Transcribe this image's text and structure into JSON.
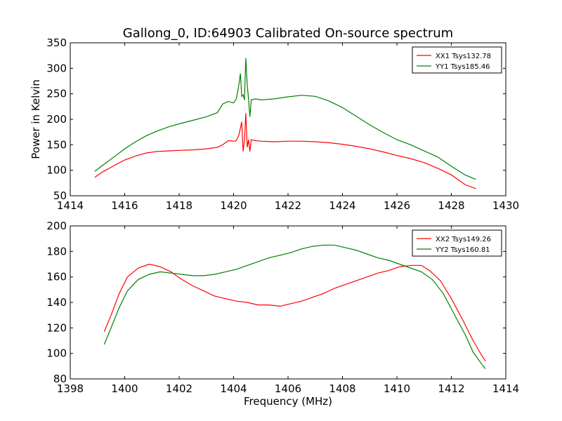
{
  "title": "Gallong_0, ID:64903 Calibrated On-source spectrum",
  "chart_data": [
    {
      "type": "line",
      "title": "Gallong_0, ID:64903 Calibrated On-source spectrum",
      "xlabel": "",
      "ylabel": "Power in Kelvin",
      "xlim": [
        1414,
        1430
      ],
      "ylim": [
        50,
        350
      ],
      "xticks": [
        1414,
        1416,
        1418,
        1420,
        1422,
        1424,
        1426,
        1428,
        1430
      ],
      "yticks": [
        50,
        100,
        150,
        200,
        250,
        300,
        350
      ],
      "legend": "top-right",
      "grid": false,
      "series": [
        {
          "name": "XX1 Tsys132.78",
          "color": "#ff0000",
          "points": [
            [
              1414.9,
              86
            ],
            [
              1415.2,
              97
            ],
            [
              1415.6,
              109
            ],
            [
              1416.0,
              120
            ],
            [
              1416.4,
              128
            ],
            [
              1416.8,
              134
            ],
            [
              1417.2,
              137
            ],
            [
              1417.6,
              138
            ],
            [
              1418.0,
              139
            ],
            [
              1418.5,
              140
            ],
            [
              1419.0,
              142
            ],
            [
              1419.4,
              145
            ],
            [
              1419.6,
              150
            ],
            [
              1419.8,
              158
            ],
            [
              1420.0,
              157
            ],
            [
              1420.1,
              158
            ],
            [
              1420.2,
              170
            ],
            [
              1420.3,
              195
            ],
            [
              1420.35,
              137
            ],
            [
              1420.4,
              160
            ],
            [
              1420.45,
              212
            ],
            [
              1420.5,
              145
            ],
            [
              1420.55,
              160
            ],
            [
              1420.6,
              137
            ],
            [
              1420.65,
              160
            ],
            [
              1420.8,
              158
            ],
            [
              1421.0,
              157
            ],
            [
              1421.5,
              156
            ],
            [
              1422.0,
              157
            ],
            [
              1422.5,
              157
            ],
            [
              1423.0,
              156
            ],
            [
              1423.5,
              154
            ],
            [
              1424.0,
              151
            ],
            [
              1424.5,
              147
            ],
            [
              1425.0,
              142
            ],
            [
              1425.5,
              136
            ],
            [
              1426.0,
              129
            ],
            [
              1426.5,
              123
            ],
            [
              1427.0,
              115
            ],
            [
              1427.5,
              104
            ],
            [
              1428.0,
              91
            ],
            [
              1428.5,
              72
            ],
            [
              1428.9,
              64
            ]
          ]
        },
        {
          "name": "YY1 Tsys185.46",
          "color": "#008000",
          "points": [
            [
              1414.9,
              98
            ],
            [
              1415.2,
              110
            ],
            [
              1415.6,
              126
            ],
            [
              1416.0,
              142
            ],
            [
              1416.4,
              156
            ],
            [
              1416.8,
              168
            ],
            [
              1417.2,
              177
            ],
            [
              1417.6,
              185
            ],
            [
              1418.0,
              191
            ],
            [
              1418.5,
              198
            ],
            [
              1419.0,
              205
            ],
            [
              1419.4,
              213
            ],
            [
              1419.6,
              230
            ],
            [
              1419.8,
              235
            ],
            [
              1420.0,
              232
            ],
            [
              1420.1,
              240
            ],
            [
              1420.2,
              270
            ],
            [
              1420.25,
              290
            ],
            [
              1420.3,
              245
            ],
            [
              1420.35,
              248
            ],
            [
              1420.4,
              238
            ],
            [
              1420.45,
              320
            ],
            [
              1420.5,
              268
            ],
            [
              1420.55,
              240
            ],
            [
              1420.6,
              205
            ],
            [
              1420.65,
              238
            ],
            [
              1420.8,
              240
            ],
            [
              1421.0,
              238
            ],
            [
              1421.5,
              240
            ],
            [
              1422.0,
              244
            ],
            [
              1422.5,
              247
            ],
            [
              1423.0,
              245
            ],
            [
              1423.5,
              236
            ],
            [
              1424.0,
              223
            ],
            [
              1424.5,
              206
            ],
            [
              1425.0,
              189
            ],
            [
              1425.5,
              174
            ],
            [
              1426.0,
              160
            ],
            [
              1426.5,
              150
            ],
            [
              1427.0,
              138
            ],
            [
              1427.5,
              126
            ],
            [
              1428.0,
              108
            ],
            [
              1428.5,
              91
            ],
            [
              1428.9,
              82
            ]
          ]
        }
      ]
    },
    {
      "type": "line",
      "title": "",
      "xlabel": "Frequency (MHz)",
      "ylabel": "",
      "xlim": [
        1398,
        1414
      ],
      "ylim": [
        80,
        200
      ],
      "xticks": [
        1398,
        1400,
        1402,
        1404,
        1406,
        1408,
        1410,
        1412,
        1414
      ],
      "yticks": [
        80,
        100,
        120,
        140,
        160,
        180,
        200
      ],
      "legend": "top-right",
      "grid": false,
      "series": [
        {
          "name": "XX2 Tsys149.26",
          "color": "#ff0000",
          "points": [
            [
              1399.25,
              117
            ],
            [
              1399.5,
              130
            ],
            [
              1399.8,
              147
            ],
            [
              1400.1,
              160
            ],
            [
              1400.5,
              167
            ],
            [
              1400.9,
              170
            ],
            [
              1401.3,
              168
            ],
            [
              1401.7,
              164
            ],
            [
              1402.1,
              158
            ],
            [
              1402.5,
              153
            ],
            [
              1402.9,
              149
            ],
            [
              1403.3,
              145
            ],
            [
              1403.7,
              143
            ],
            [
              1404.1,
              141
            ],
            [
              1404.5,
              140
            ],
            [
              1404.9,
              138
            ],
            [
              1405.3,
              138
            ],
            [
              1405.7,
              137
            ],
            [
              1406.1,
              139
            ],
            [
              1406.5,
              141
            ],
            [
              1406.9,
              144
            ],
            [
              1407.3,
              147
            ],
            [
              1407.7,
              151
            ],
            [
              1408.1,
              154
            ],
            [
              1408.5,
              157
            ],
            [
              1408.9,
              160
            ],
            [
              1409.3,
              163
            ],
            [
              1409.7,
              165
            ],
            [
              1410.1,
              168
            ],
            [
              1410.5,
              169
            ],
            [
              1410.9,
              169
            ],
            [
              1411.2,
              165
            ],
            [
              1411.6,
              157
            ],
            [
              1412.0,
              143
            ],
            [
              1412.4,
              127
            ],
            [
              1412.8,
              110
            ],
            [
              1413.1,
              99
            ],
            [
              1413.25,
              94
            ]
          ]
        },
        {
          "name": "YY2 Tsys160.81",
          "color": "#008000",
          "points": [
            [
              1399.25,
              107
            ],
            [
              1399.5,
              120
            ],
            [
              1399.8,
              136
            ],
            [
              1400.1,
              149
            ],
            [
              1400.5,
              158
            ],
            [
              1400.9,
              162
            ],
            [
              1401.3,
              164
            ],
            [
              1401.7,
              163
            ],
            [
              1402.1,
              162
            ],
            [
              1402.5,
              161
            ],
            [
              1402.9,
              161
            ],
            [
              1403.3,
              162
            ],
            [
              1403.7,
              164
            ],
            [
              1404.1,
              166
            ],
            [
              1404.5,
              169
            ],
            [
              1404.9,
              172
            ],
            [
              1405.3,
              175
            ],
            [
              1405.7,
              177
            ],
            [
              1406.1,
              179
            ],
            [
              1406.5,
              182
            ],
            [
              1406.9,
              184
            ],
            [
              1407.3,
              185
            ],
            [
              1407.7,
              185
            ],
            [
              1408.1,
              183
            ],
            [
              1408.5,
              181
            ],
            [
              1408.9,
              178
            ],
            [
              1409.3,
              175
            ],
            [
              1409.7,
              173
            ],
            [
              1410.1,
              170
            ],
            [
              1410.5,
              167
            ],
            [
              1410.9,
              164
            ],
            [
              1411.3,
              158
            ],
            [
              1411.7,
              147
            ],
            [
              1412.1,
              131
            ],
            [
              1412.5,
              115
            ],
            [
              1412.8,
              101
            ],
            [
              1413.1,
              92
            ],
            [
              1413.25,
              88
            ]
          ]
        }
      ]
    }
  ]
}
